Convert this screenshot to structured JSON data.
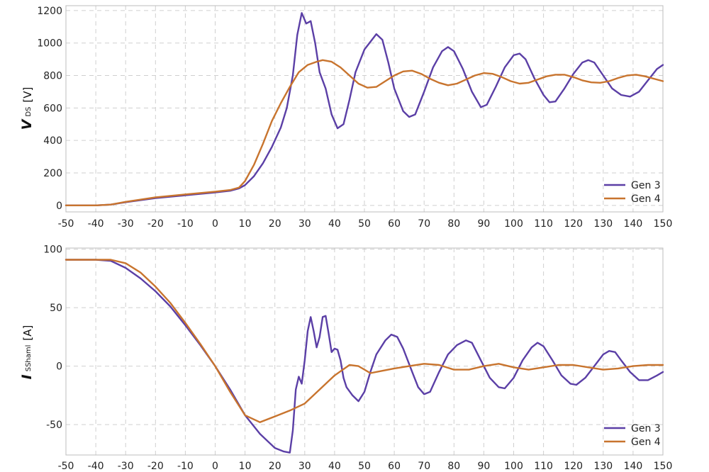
{
  "chart_data": [
    {
      "type": "line",
      "ylabel_main": "V",
      "ylabel_sub": "DS",
      "ylabel_unit": "[V]",
      "xlim": [
        -50,
        150
      ],
      "ylim": [
        -40,
        1230
      ],
      "xticks": [
        -50,
        -40,
        -30,
        -20,
        -10,
        0,
        10,
        20,
        30,
        40,
        50,
        60,
        70,
        80,
        90,
        100,
        110,
        120,
        130,
        140,
        150
      ],
      "yticks": [
        0,
        200,
        400,
        600,
        800,
        1000,
        1200
      ],
      "grid": true,
      "legend_position": "bottom-right",
      "series": [
        {
          "name": "Gen 3",
          "color": "#5b3fa6",
          "points": [
            [
              -50,
              0
            ],
            [
              -40,
              0
            ],
            [
              -35,
              5
            ],
            [
              -30,
              20
            ],
            [
              -20,
              45
            ],
            [
              -10,
              62
            ],
            [
              0,
              80
            ],
            [
              5,
              90
            ],
            [
              8,
              105
            ],
            [
              10,
              125
            ],
            [
              13,
              180
            ],
            [
              16,
              260
            ],
            [
              19,
              360
            ],
            [
              22,
              480
            ],
            [
              24,
              600
            ],
            [
              26,
              800
            ],
            [
              27.5,
              1050
            ],
            [
              29,
              1185
            ],
            [
              30.5,
              1120
            ],
            [
              32,
              1135
            ],
            [
              33.5,
              1000
            ],
            [
              35,
              820
            ],
            [
              37,
              720
            ],
            [
              39,
              560
            ],
            [
              41,
              475
            ],
            [
              43,
              500
            ],
            [
              45,
              650
            ],
            [
              47,
              820
            ],
            [
              50,
              960
            ],
            [
              54,
              1055
            ],
            [
              56,
              1020
            ],
            [
              58,
              880
            ],
            [
              60,
              720
            ],
            [
              63,
              580
            ],
            [
              65,
              545
            ],
            [
              67,
              560
            ],
            [
              70,
              700
            ],
            [
              73,
              850
            ],
            [
              76,
              950
            ],
            [
              78,
              975
            ],
            [
              80,
              950
            ],
            [
              83,
              840
            ],
            [
              86,
              700
            ],
            [
              89,
              605
            ],
            [
              91,
              620
            ],
            [
              94,
              730
            ],
            [
              97,
              850
            ],
            [
              100,
              925
            ],
            [
              102,
              935
            ],
            [
              104,
              900
            ],
            [
              107,
              780
            ],
            [
              110,
              680
            ],
            [
              112,
              635
            ],
            [
              114,
              640
            ],
            [
              117,
              720
            ],
            [
              120,
              810
            ],
            [
              123,
              880
            ],
            [
              125,
              895
            ],
            [
              127,
              880
            ],
            [
              130,
              800
            ],
            [
              133,
              720
            ],
            [
              136,
              680
            ],
            [
              139,
              670
            ],
            [
              142,
              700
            ],
            [
              145,
              770
            ],
            [
              148,
              840
            ],
            [
              150,
              865
            ]
          ]
        },
        {
          "name": "Gen 4",
          "color": "#c8742e",
          "points": [
            [
              -50,
              0
            ],
            [
              -40,
              0
            ],
            [
              -35,
              5
            ],
            [
              -30,
              22
            ],
            [
              -20,
              50
            ],
            [
              -10,
              68
            ],
            [
              0,
              85
            ],
            [
              5,
              95
            ],
            [
              8,
              110
            ],
            [
              10,
              150
            ],
            [
              13,
              250
            ],
            [
              16,
              380
            ],
            [
              19,
              520
            ],
            [
              22,
              630
            ],
            [
              25,
              730
            ],
            [
              28,
              820
            ],
            [
              31,
              865
            ],
            [
              34,
              885
            ],
            [
              36,
              895
            ],
            [
              39,
              885
            ],
            [
              42,
              850
            ],
            [
              45,
              800
            ],
            [
              48,
              750
            ],
            [
              51,
              725
            ],
            [
              54,
              730
            ],
            [
              57,
              765
            ],
            [
              60,
              800
            ],
            [
              63,
              825
            ],
            [
              66,
              830
            ],
            [
              69,
              810
            ],
            [
              72,
              780
            ],
            [
              75,
              755
            ],
            [
              78,
              740
            ],
            [
              81,
              750
            ],
            [
              84,
              775
            ],
            [
              87,
              800
            ],
            [
              90,
              815
            ],
            [
              93,
              810
            ],
            [
              96,
              790
            ],
            [
              99,
              765
            ],
            [
              102,
              750
            ],
            [
              105,
              755
            ],
            [
              108,
              775
            ],
            [
              111,
              795
            ],
            [
              114,
              805
            ],
            [
              117,
              805
            ],
            [
              120,
              790
            ],
            [
              123,
              770
            ],
            [
              126,
              758
            ],
            [
              129,
              755
            ],
            [
              132,
              765
            ],
            [
              135,
              785
            ],
            [
              138,
              800
            ],
            [
              141,
              805
            ],
            [
              144,
              795
            ],
            [
              147,
              780
            ],
            [
              150,
              765
            ]
          ]
        }
      ]
    },
    {
      "type": "line",
      "ylabel_main": "I",
      "ylabel_sub": "SShaml",
      "ylabel_unit": "[A]",
      "xlim": [
        -50,
        150
      ],
      "ylim": [
        -76,
        101
      ],
      "xticks": [
        -50,
        -40,
        -30,
        -20,
        -10,
        0,
        10,
        20,
        30,
        40,
        50,
        60,
        70,
        80,
        90,
        100,
        110,
        120,
        130,
        140,
        150
      ],
      "yticks": [
        -50,
        0,
        50,
        100
      ],
      "grid": true,
      "legend_position": "bottom-right",
      "series": [
        {
          "name": "Gen 3",
          "color": "#5b3fa6",
          "points": [
            [
              -50,
              91
            ],
            [
              -40,
              91
            ],
            [
              -35,
              90
            ],
            [
              -30,
              84
            ],
            [
              -25,
              75
            ],
            [
              -20,
              64
            ],
            [
              -15,
              51
            ],
            [
              -10,
              35
            ],
            [
              -5,
              18
            ],
            [
              0,
              0
            ],
            [
              5,
              -20
            ],
            [
              10,
              -42
            ],
            [
              15,
              -58
            ],
            [
              20,
              -70
            ],
            [
              23,
              -73
            ],
            [
              25,
              -74
            ],
            [
              26,
              -55
            ],
            [
              27,
              -20
            ],
            [
              28,
              -9
            ],
            [
              29,
              -15
            ],
            [
              30,
              5
            ],
            [
              31,
              30
            ],
            [
              32,
              42
            ],
            [
              33,
              30
            ],
            [
              34,
              16
            ],
            [
              35,
              25
            ],
            [
              36,
              42
            ],
            [
              37,
              43
            ],
            [
              38,
              28
            ],
            [
              39,
              12
            ],
            [
              40,
              15
            ],
            [
              41,
              14
            ],
            [
              42,
              5
            ],
            [
              43,
              -10
            ],
            [
              44,
              -18
            ],
            [
              46,
              -25
            ],
            [
              48,
              -30
            ],
            [
              50,
              -22
            ],
            [
              52,
              -5
            ],
            [
              54,
              10
            ],
            [
              57,
              22
            ],
            [
              59,
              27
            ],
            [
              61,
              25
            ],
            [
              63,
              15
            ],
            [
              66,
              -5
            ],
            [
              68,
              -18
            ],
            [
              70,
              -24
            ],
            [
              72,
              -22
            ],
            [
              75,
              -5
            ],
            [
              78,
              10
            ],
            [
              81,
              18
            ],
            [
              84,
              22
            ],
            [
              86,
              20
            ],
            [
              89,
              5
            ],
            [
              92,
              -10
            ],
            [
              95,
              -18
            ],
            [
              97,
              -19
            ],
            [
              100,
              -10
            ],
            [
              103,
              5
            ],
            [
              106,
              16
            ],
            [
              108,
              20
            ],
            [
              110,
              17
            ],
            [
              113,
              5
            ],
            [
              116,
              -8
            ],
            [
              119,
              -15
            ],
            [
              121,
              -16
            ],
            [
              124,
              -10
            ],
            [
              127,
              0
            ],
            [
              130,
              10
            ],
            [
              132,
              13
            ],
            [
              134,
              12
            ],
            [
              136,
              5
            ],
            [
              139,
              -5
            ],
            [
              142,
              -12
            ],
            [
              145,
              -12
            ],
            [
              148,
              -8
            ],
            [
              150,
              -5
            ]
          ]
        },
        {
          "name": "Gen 4",
          "color": "#c8742e",
          "points": [
            [
              -50,
              91
            ],
            [
              -40,
              91
            ],
            [
              -35,
              91
            ],
            [
              -30,
              88
            ],
            [
              -25,
              80
            ],
            [
              -20,
              68
            ],
            [
              -15,
              54
            ],
            [
              -10,
              37
            ],
            [
              -5,
              19
            ],
            [
              0,
              0
            ],
            [
              5,
              -22
            ],
            [
              10,
              -42
            ],
            [
              15,
              -48
            ],
            [
              20,
              -43
            ],
            [
              25,
              -38
            ],
            [
              30,
              -32
            ],
            [
              35,
              -20
            ],
            [
              40,
              -8
            ],
            [
              45,
              1
            ],
            [
              48,
              0
            ],
            [
              52,
              -6
            ],
            [
              56,
              -4
            ],
            [
              60,
              -2
            ],
            [
              65,
              0
            ],
            [
              70,
              2
            ],
            [
              75,
              1
            ],
            [
              80,
              -3
            ],
            [
              85,
              -3
            ],
            [
              90,
              0
            ],
            [
              95,
              2
            ],
            [
              100,
              -1
            ],
            [
              105,
              -3
            ],
            [
              110,
              -1
            ],
            [
              115,
              1
            ],
            [
              120,
              1
            ],
            [
              125,
              -1
            ],
            [
              130,
              -3
            ],
            [
              135,
              -2
            ],
            [
              140,
              0
            ],
            [
              145,
              1
            ],
            [
              150,
              1
            ]
          ]
        }
      ]
    }
  ]
}
